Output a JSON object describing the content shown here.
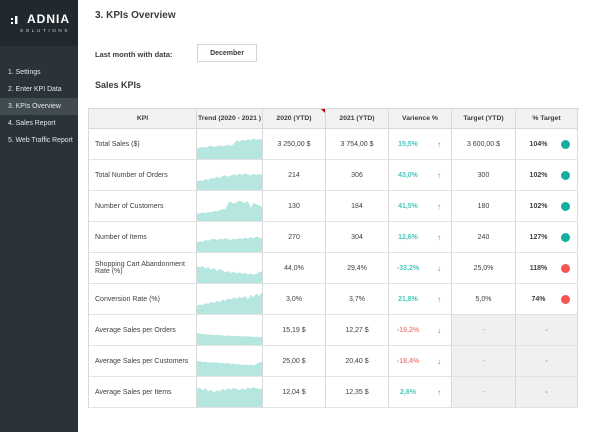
{
  "sidebar": {
    "brand": "ADNIA",
    "brand_sub": "SOLUTIONS",
    "items": [
      {
        "label": "1. Settings",
        "active": false
      },
      {
        "label": "2. Enter KPI Data",
        "active": false
      },
      {
        "label": "3. KPIs Overview",
        "active": true
      },
      {
        "label": "4. Sales Report",
        "active": false
      },
      {
        "label": "5. Web Traffic Report",
        "active": false
      }
    ]
  },
  "header": {
    "title": "3. KPIs Overview",
    "last_month_label": "Last month with data:",
    "last_month_value": "December",
    "section_title": "Sales KPIs"
  },
  "table": {
    "columns": [
      "KPI",
      "Trend (2020 - 2021 )",
      "2020 (YTD)",
      "2021 (YTD)",
      "Varience %",
      "Target (YTD)",
      "% Target"
    ],
    "comment_flag_column": "2020 (YTD)",
    "rows": [
      {
        "kpi": "Total Sales ($)",
        "y2020": "3 250,00 $",
        "y2021": "3 754,00 $",
        "variance": "15,5%",
        "direction": "up",
        "variance_tone": "teal",
        "target": "3 600,00 $",
        "pct_target": "104%",
        "dot": "teal",
        "spark": [
          0.45,
          0.47,
          0.5,
          0.48,
          0.52,
          0.55,
          0.5,
          0.53,
          0.58,
          0.52,
          0.56,
          0.6,
          0.55,
          0.62,
          0.78,
          0.72,
          0.8,
          0.75,
          0.82,
          0.78,
          0.85,
          0.8,
          0.83,
          0.8
        ]
      },
      {
        "kpi": "Total Number of Orders",
        "y2020": "214",
        "y2021": "306",
        "variance": "43,0%",
        "direction": "up",
        "variance_tone": "teal",
        "target": "300",
        "pct_target": "102%",
        "dot": "teal",
        "spark": [
          0.35,
          0.4,
          0.38,
          0.45,
          0.42,
          0.5,
          0.48,
          0.55,
          0.5,
          0.58,
          0.62,
          0.55,
          0.6,
          0.65,
          0.6,
          0.68,
          0.63,
          0.7,
          0.65,
          0.6,
          0.67,
          0.62,
          0.68,
          0.64
        ]
      },
      {
        "kpi": "Number of Customers",
        "y2020": "130",
        "y2021": "184",
        "variance": "41,5%",
        "direction": "up",
        "variance_tone": "teal",
        "target": "180",
        "pct_target": "102%",
        "dot": "teal",
        "spark": [
          0.3,
          0.32,
          0.35,
          0.33,
          0.38,
          0.36,
          0.42,
          0.4,
          0.45,
          0.5,
          0.48,
          0.75,
          0.8,
          0.72,
          0.78,
          0.85,
          0.8,
          0.75,
          0.82,
          0.55,
          0.75,
          0.7,
          0.65,
          0.6
        ]
      },
      {
        "kpi": "Number of Items",
        "y2020": "270",
        "y2021": "304",
        "variance": "12,6%",
        "direction": "up",
        "variance_tone": "teal",
        "target": "240",
        "pct_target": "127%",
        "dot": "teal",
        "spark": [
          0.4,
          0.45,
          0.42,
          0.5,
          0.47,
          0.52,
          0.55,
          0.5,
          0.55,
          0.52,
          0.58,
          0.54,
          0.5,
          0.55,
          0.52,
          0.57,
          0.54,
          0.6,
          0.56,
          0.62,
          0.58,
          0.64,
          0.6,
          0.58
        ]
      },
      {
        "kpi": "Shopping Cart Abandonment Rate (%)",
        "y2020": "44,0%",
        "y2021": "29,4%",
        "variance": "-33,2%",
        "direction": "down",
        "variance_tone": "teal",
        "target": "25,0%",
        "pct_target": "118%",
        "dot": "red",
        "spark": [
          0.7,
          0.65,
          0.72,
          0.6,
          0.66,
          0.55,
          0.62,
          0.5,
          0.58,
          0.52,
          0.45,
          0.5,
          0.42,
          0.47,
          0.4,
          0.44,
          0.38,
          0.42,
          0.35,
          0.4,
          0.34,
          0.38,
          0.45,
          0.5
        ]
      },
      {
        "kpi": "Conversion Rate (%)",
        "y2020": "3,0%",
        "y2021": "3,7%",
        "variance": "21,8%",
        "direction": "up",
        "variance_tone": "teal",
        "target": "5,0%",
        "pct_target": "74%",
        "dot": "red",
        "spark": [
          0.35,
          0.4,
          0.37,
          0.45,
          0.42,
          0.5,
          0.46,
          0.55,
          0.5,
          0.6,
          0.55,
          0.65,
          0.6,
          0.7,
          0.63,
          0.72,
          0.66,
          0.75,
          0.6,
          0.8,
          0.7,
          0.85,
          0.75,
          0.9
        ]
      },
      {
        "kpi": "Average Sales per Orders",
        "y2020": "15,19 $",
        "y2021": "12,27 $",
        "variance": "-19,2%",
        "direction": "down",
        "variance_tone": "red",
        "target": "-",
        "pct_target": "-",
        "dot": "none",
        "spark": [
          0.5,
          0.48,
          0.45,
          0.46,
          0.43,
          0.44,
          0.41,
          0.42,
          0.4,
          0.41,
          0.38,
          0.4,
          0.37,
          0.39,
          0.36,
          0.38,
          0.35,
          0.37,
          0.34,
          0.36,
          0.33,
          0.35,
          0.32,
          0.34
        ]
      },
      {
        "kpi": "Average Sales per Customers",
        "y2020": "25,00 $",
        "y2021": "20,40 $",
        "variance": "-18,4%",
        "direction": "down",
        "variance_tone": "red",
        "target": "-",
        "pct_target": "-",
        "dot": "none",
        "spark": [
          0.6,
          0.62,
          0.58,
          0.6,
          0.56,
          0.58,
          0.55,
          0.57,
          0.53,
          0.55,
          0.52,
          0.54,
          0.5,
          0.52,
          0.48,
          0.5,
          0.46,
          0.48,
          0.45,
          0.47,
          0.44,
          0.5,
          0.55,
          0.6
        ]
      },
      {
        "kpi": "Average Sales per Items",
        "y2020": "12,04 $",
        "y2021": "12,35 $",
        "variance": "2,6%",
        "direction": "up",
        "variance_tone": "teal",
        "target": "-",
        "pct_target": "-",
        "dot": "none",
        "spark": [
          0.75,
          0.8,
          0.7,
          0.78,
          0.65,
          0.72,
          0.6,
          0.7,
          0.65,
          0.75,
          0.7,
          0.78,
          0.72,
          0.8,
          0.75,
          0.7,
          0.78,
          0.72,
          0.8,
          0.76,
          0.82,
          0.78,
          0.74,
          0.78
        ]
      }
    ]
  },
  "colors": {
    "teal": "#1db3a6",
    "teal_light": "#4cc6bd",
    "red": "#ea4f48",
    "red_light": "#f28b86",
    "dot_teal": "#16af9f",
    "dot_red": "#f4544c",
    "spark_fill": "#b5e6df",
    "sidebar_bg": "#2b333a",
    "logo_bg": "#212930",
    "active_bg": "#414b52"
  }
}
